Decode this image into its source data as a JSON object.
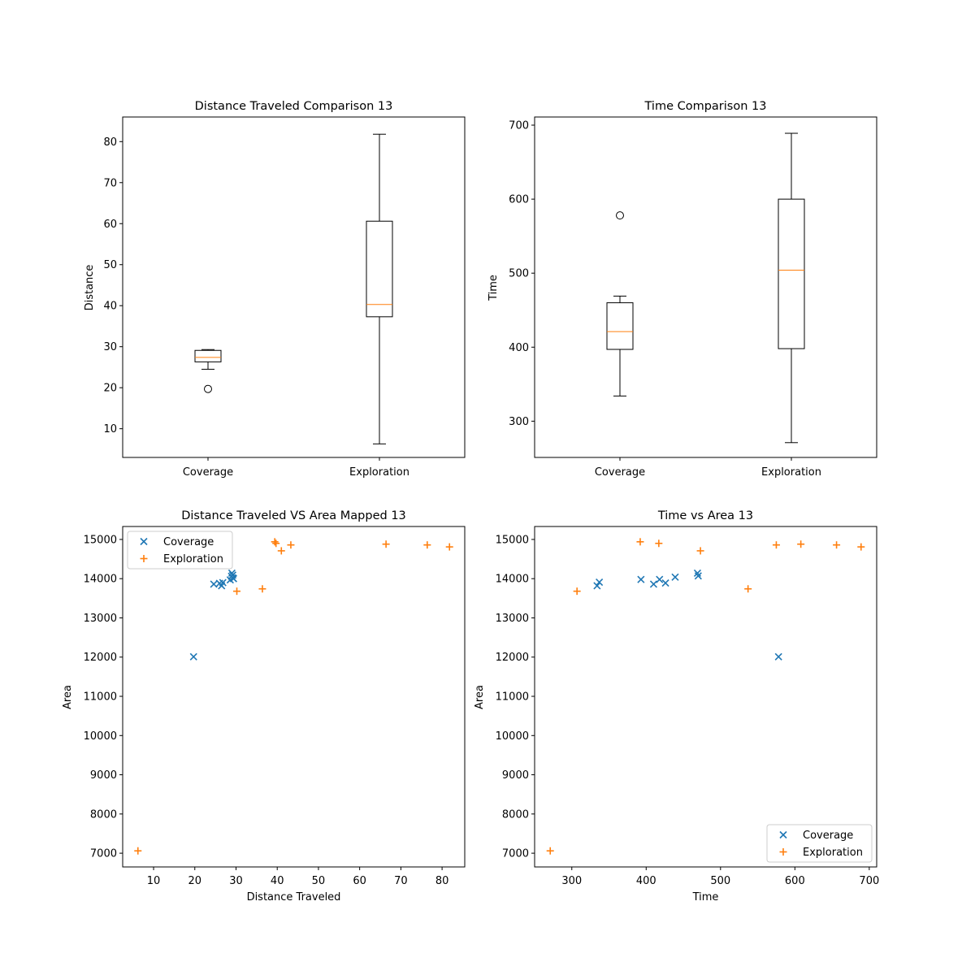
{
  "colors": {
    "coverage": "#1f77b4",
    "exploration": "#ff7f0e",
    "median": "#ff7f0e",
    "axis": "#000000"
  },
  "chart_data": [
    {
      "type": "box",
      "title": "Distance Traveled Comparison 13",
      "xlabel": "",
      "ylabel": "Distance",
      "categories": [
        "Coverage",
        "Exploration"
      ],
      "ylim": [
        3,
        86
      ],
      "yticks": [
        10,
        20,
        30,
        40,
        50,
        60,
        70,
        80
      ],
      "boxes": [
        {
          "name": "Coverage",
          "whisker_low": 24.5,
          "q1": 26.3,
          "median": 27.4,
          "q3": 29.1,
          "whisker_high": 29.3,
          "outliers": [
            19.7
          ]
        },
        {
          "name": "Exploration",
          "whisker_low": 6.3,
          "q1": 37.3,
          "median": 40.3,
          "q3": 60.6,
          "whisker_high": 81.8,
          "outliers": []
        }
      ],
      "grid": false
    },
    {
      "type": "box",
      "title": "Time Comparison 13",
      "xlabel": "",
      "ylabel": "Time",
      "categories": [
        "Coverage",
        "Exploration"
      ],
      "ylim": [
        251,
        711
      ],
      "yticks": [
        300,
        400,
        500,
        600,
        700
      ],
      "boxes": [
        {
          "name": "Coverage",
          "whisker_low": 334,
          "q1": 397,
          "median": 421,
          "q3": 460,
          "whisker_high": 469,
          "outliers": [
            578
          ]
        },
        {
          "name": "Exploration",
          "whisker_low": 271,
          "q1": 398,
          "median": 504,
          "q3": 600,
          "whisker_high": 689,
          "outliers": []
        }
      ],
      "grid": false
    },
    {
      "type": "scatter",
      "title": "Distance Traveled VS Area Mapped 13",
      "xlabel": "Distance Traveled",
      "ylabel": "Area",
      "xlim": [
        2.5,
        85.5
      ],
      "ylim": [
        6650,
        15330
      ],
      "xticks": [
        10,
        20,
        30,
        40,
        50,
        60,
        70,
        80
      ],
      "yticks": [
        7000,
        8000,
        9000,
        10000,
        11000,
        12000,
        13000,
        14000,
        15000
      ],
      "legend_position": "upper-left",
      "series": [
        {
          "name": "Coverage",
          "marker": "x",
          "points": [
            [
              19.7,
              12010
            ],
            [
              24.6,
              13860
            ],
            [
              26.0,
              13880
            ],
            [
              26.5,
              13820
            ],
            [
              26.8,
              13900
            ],
            [
              28.6,
              13970
            ],
            [
              28.9,
              14060
            ],
            [
              29.0,
              14140
            ],
            [
              29.2,
              14020
            ],
            [
              29.4,
              14000
            ],
            [
              29.2,
              14090
            ]
          ]
        },
        {
          "name": "Exploration",
          "marker": "+",
          "points": [
            [
              6.2,
              7060
            ],
            [
              30.2,
              13680
            ],
            [
              36.4,
              13740
            ],
            [
              39.4,
              14940
            ],
            [
              39.7,
              14900
            ],
            [
              41.0,
              14710
            ],
            [
              43.3,
              14860
            ],
            [
              66.4,
              14880
            ],
            [
              76.4,
              14860
            ],
            [
              81.8,
              14810
            ]
          ]
        }
      ],
      "grid": false
    },
    {
      "type": "scatter",
      "title": "Time vs Area 13",
      "xlabel": "Time",
      "ylabel": "Area",
      "xlim": [
        250,
        710
      ],
      "ylim": [
        6650,
        15330
      ],
      "xticks": [
        300,
        400,
        500,
        600,
        700
      ],
      "yticks": [
        7000,
        8000,
        9000,
        10000,
        11000,
        12000,
        13000,
        14000,
        15000
      ],
      "legend_position": "lower-right",
      "series": [
        {
          "name": "Coverage",
          "marker": "x",
          "points": [
            [
              334,
              13820
            ],
            [
              337,
              13910
            ],
            [
              393,
              13980
            ],
            [
              410,
              13860
            ],
            [
              418,
              13980
            ],
            [
              426,
              13890
            ],
            [
              439,
              14040
            ],
            [
              469,
              14140
            ],
            [
              470,
              14070
            ],
            [
              578,
              12010
            ]
          ]
        },
        {
          "name": "Exploration",
          "marker": "+",
          "points": [
            [
              271,
              7060
            ],
            [
              307,
              13680
            ],
            [
              392,
              14940
            ],
            [
              417,
              14900
            ],
            [
              473,
              14710
            ],
            [
              537,
              13740
            ],
            [
              575,
              14860
            ],
            [
              608,
              14880
            ],
            [
              656,
              14860
            ],
            [
              689,
              14810
            ]
          ]
        }
      ],
      "grid": false
    }
  ]
}
